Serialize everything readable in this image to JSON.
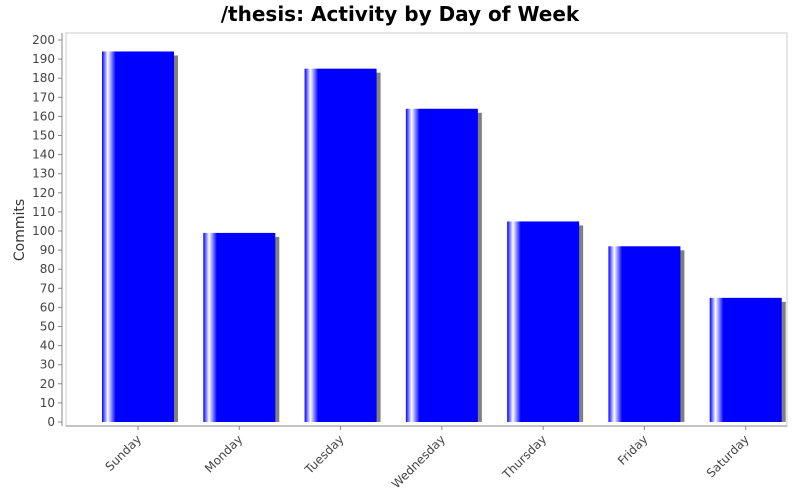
{
  "chart_data": {
    "type": "bar",
    "title": "/thesis: Activity by Day of Week",
    "xlabel": "",
    "ylabel": "Commits",
    "categories": [
      "Sunday",
      "Monday",
      "Tuesday",
      "Wednesday",
      "Thursday",
      "Friday",
      "Saturday"
    ],
    "values": [
      194,
      99,
      185,
      164,
      105,
      92,
      65
    ],
    "ylim": [
      0,
      200
    ],
    "yticks": [
      0,
      10,
      20,
      30,
      40,
      50,
      60,
      70,
      80,
      90,
      100,
      110,
      120,
      130,
      140,
      150,
      160,
      170,
      180,
      190,
      200
    ],
    "grid": false,
    "legend": "none",
    "colors": {
      "bar": "#0000ff",
      "bar_highlight": "#ffffff",
      "shadow": "#808080",
      "axis": "#888888",
      "text": "#444444",
      "title": "#000000"
    }
  }
}
